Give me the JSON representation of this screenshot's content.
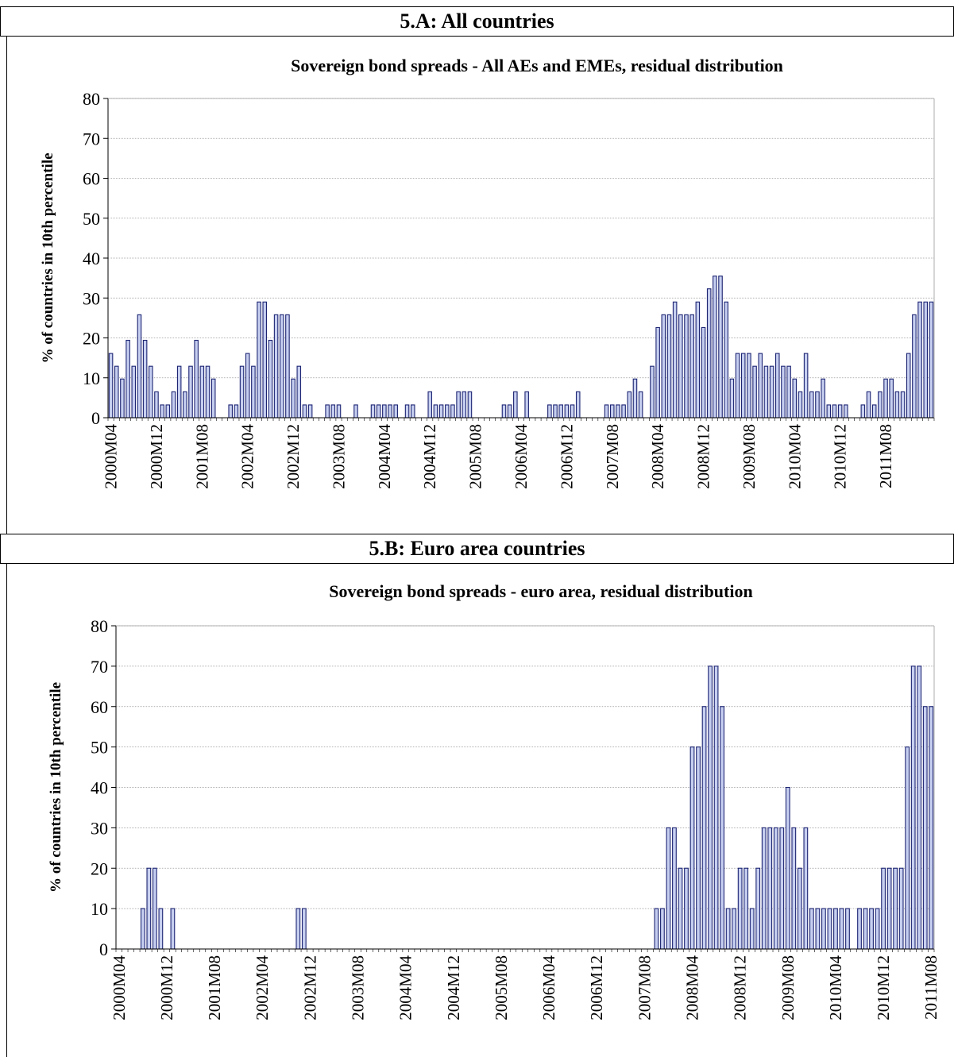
{
  "panels": [
    {
      "header": "5.A:  All countries"
    },
    {
      "header": "5.B: Euro area countries"
    }
  ],
  "chart_data": [
    {
      "type": "bar",
      "title": "Sovereign bond spreads - All AEs and EMEs, residual distribution",
      "ylabel": "% of countries in 10th percentile",
      "xlabel": "",
      "ylim": [
        0,
        80
      ],
      "yticks": [
        0,
        10,
        20,
        30,
        40,
        50,
        60,
        70,
        80
      ],
      "grid": true,
      "bar_color": "#1c2472",
      "tick_labels": [
        "2000M04",
        "2000M12",
        "2001M08",
        "2002M04",
        "2002M12",
        "2003M08",
        "2004M04",
        "2004M12",
        "2005M08",
        "2006M04",
        "2006M12",
        "2007M08",
        "2008M04",
        "2008M12",
        "2009M08",
        "2010M04",
        "2010M12",
        "2011M08"
      ],
      "start_period": "2000M04",
      "values": [
        16.1,
        12.9,
        9.7,
        19.4,
        12.9,
        25.8,
        19.4,
        12.9,
        6.5,
        3.2,
        3.2,
        6.5,
        12.9,
        6.5,
        12.9,
        19.4,
        12.9,
        12.9,
        9.7,
        0,
        0,
        3.2,
        3.2,
        12.9,
        16.1,
        12.9,
        29.0,
        29.0,
        19.4,
        25.8,
        25.8,
        25.8,
        9.7,
        12.9,
        3.2,
        3.2,
        0,
        0,
        3.2,
        3.2,
        3.2,
        0,
        0,
        3.2,
        0,
        0,
        3.2,
        3.2,
        3.2,
        3.2,
        3.2,
        0,
        3.2,
        3.2,
        0,
        0,
        6.5,
        3.2,
        3.2,
        3.2,
        3.2,
        6.5,
        6.5,
        6.5,
        0,
        0,
        0,
        0,
        0,
        3.2,
        3.2,
        6.5,
        0,
        6.5,
        0,
        0,
        0,
        3.2,
        3.2,
        3.2,
        3.2,
        3.2,
        6.5,
        0,
        0,
        0,
        0,
        3.2,
        3.2,
        3.2,
        3.2,
        6.5,
        9.7,
        6.5,
        0,
        12.9,
        22.6,
        25.8,
        25.8,
        29.0,
        25.8,
        25.8,
        25.8,
        29.0,
        22.6,
        32.3,
        35.5,
        35.5,
        29.0,
        9.7,
        16.1,
        16.1,
        16.1,
        12.9,
        16.1,
        12.9,
        12.9,
        16.1,
        12.9,
        12.9,
        9.7,
        6.5,
        16.1,
        6.5,
        6.5,
        9.7,
        3.2,
        3.2,
        3.2,
        3.2,
        0,
        0,
        3.2,
        6.5,
        3.2,
        6.5,
        9.7,
        9.7,
        6.5,
        6.5,
        16.1,
        25.8,
        29.0,
        29.0,
        29.0
      ]
    },
    {
      "type": "bar",
      "title": "Sovereign bond spreads - euro area, residual distribution",
      "ylabel": "% of countries in 10th percentile",
      "xlabel": "",
      "ylim": [
        0,
        80
      ],
      "yticks": [
        0,
        10,
        20,
        30,
        40,
        50,
        60,
        70,
        80
      ],
      "grid": true,
      "bar_color": "#1c2472",
      "tick_labels": [
        "2000M04",
        "2000M12",
        "2001M08",
        "2002M04",
        "2002M12",
        "2003M08",
        "2004M04",
        "2004M12",
        "2005M08",
        "2006M04",
        "2006M12",
        "2007M08",
        "2008M04",
        "2008M12",
        "2009M08",
        "2010M04",
        "2010M12",
        "2011M08"
      ],
      "start_period": "2000M04",
      "values": [
        0,
        0,
        0,
        0,
        10,
        20,
        20,
        10,
        0,
        10,
        0,
        0,
        0,
        0,
        0,
        0,
        0,
        0,
        0,
        0,
        0,
        0,
        0,
        0,
        0,
        0,
        0,
        0,
        0,
        0,
        10,
        10,
        0,
        0,
        0,
        0,
        0,
        0,
        0,
        0,
        0,
        0,
        0,
        0,
        0,
        0,
        0,
        0,
        0,
        0,
        0,
        0,
        0,
        0,
        0,
        0,
        0,
        0,
        0,
        0,
        0,
        0,
        0,
        0,
        0,
        0,
        0,
        0,
        0,
        0,
        0,
        0,
        0,
        0,
        0,
        0,
        0,
        0,
        0,
        0,
        0,
        0,
        0,
        0,
        0,
        0,
        0,
        0,
        0,
        0,
        10,
        10,
        30,
        30,
        20,
        20,
        50,
        50,
        60,
        70,
        70,
        60,
        10,
        10,
        20,
        20,
        10,
        20,
        30,
        30,
        30,
        30,
        40,
        30,
        20,
        30,
        10,
        10,
        10,
        10,
        10,
        10,
        10,
        0,
        10,
        10,
        10,
        10,
        20,
        20,
        20,
        20,
        50,
        70,
        70,
        60,
        60
      ]
    }
  ]
}
